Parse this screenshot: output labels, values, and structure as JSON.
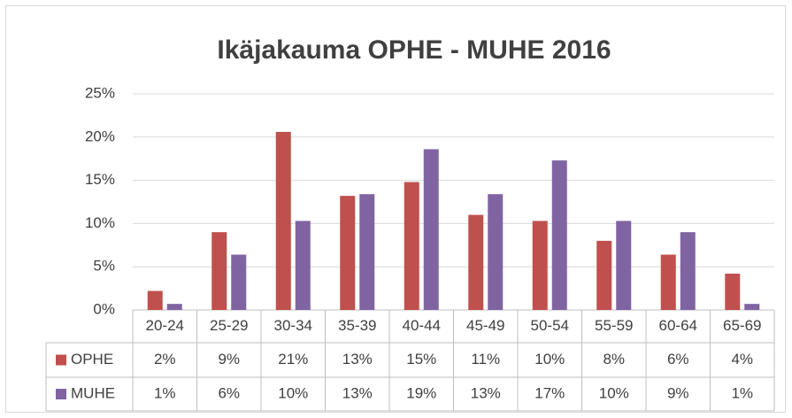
{
  "chart_data": {
    "type": "bar",
    "title": "Ikäjakauma OPHE - MUHE 2016",
    "categories": [
      "20-24",
      "25-29",
      "30-34",
      "35-39",
      "40-44",
      "45-49",
      "50-54",
      "55-59",
      "60-64",
      "65-69"
    ],
    "series": [
      {
        "name": "OPHE",
        "color": "#c0504d",
        "values": [
          2.2,
          9.0,
          20.6,
          13.2,
          14.8,
          11.0,
          10.3,
          8.0,
          6.4,
          4.2
        ],
        "value_labels": [
          "2%",
          "9%",
          "21%",
          "13%",
          "15%",
          "11%",
          "10%",
          "8%",
          "6%",
          "4%"
        ]
      },
      {
        "name": "MUHE",
        "color": "#8064a2",
        "values": [
          0.7,
          6.4,
          10.3,
          13.4,
          18.6,
          13.4,
          17.3,
          10.3,
          9.0,
          0.7
        ],
        "value_labels": [
          "1%",
          "6%",
          "10%",
          "13%",
          "19%",
          "13%",
          "17%",
          "10%",
          "9%",
          "1%"
        ]
      }
    ],
    "ylim": [
      0,
      25
    ],
    "yticks": [
      {
        "value": 0,
        "label": "0%"
      },
      {
        "value": 5,
        "label": "5%"
      },
      {
        "value": 10,
        "label": "10%"
      },
      {
        "value": 15,
        "label": "15%"
      },
      {
        "value": 20,
        "label": "20%"
      },
      {
        "value": 25,
        "label": "25%"
      }
    ],
    "grid": true
  }
}
